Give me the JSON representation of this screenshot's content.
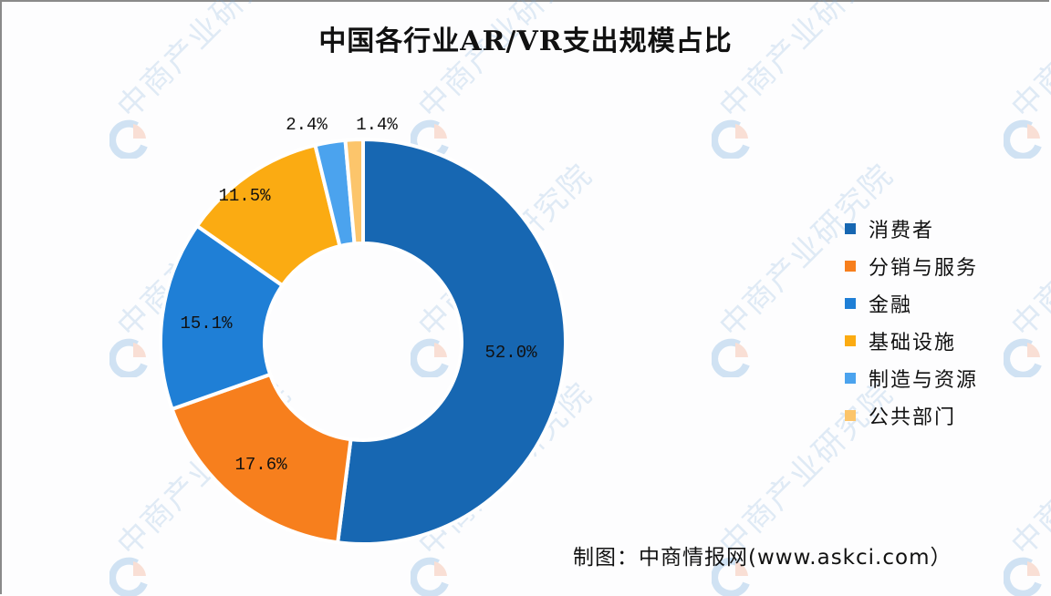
{
  "title": "中国各行业AR/VR支出规模占比",
  "source": "制图：中商情报网(www.askci.com）",
  "watermark_text": "中商产业研究院",
  "legend": [
    {
      "label": "消费者",
      "color": "#1767b2"
    },
    {
      "label": "分销与服务",
      "color": "#f77f1d"
    },
    {
      "label": "金融",
      "color": "#1f7fd6"
    },
    {
      "label": "基础设施",
      "color": "#fbab12"
    },
    {
      "label": "制造与资源",
      "color": "#4ba3ee"
    },
    {
      "label": "公共部门",
      "color": "#fcc56b"
    }
  ],
  "chart_data": {
    "type": "pie",
    "subtype": "donut",
    "title": "中国各行业AR/VR支出规模占比",
    "categories": [
      "消费者",
      "分销与服务",
      "金融",
      "基础设施",
      "制造与资源",
      "公共部门"
    ],
    "values": [
      52.0,
      17.6,
      15.1,
      11.5,
      2.4,
      1.4
    ],
    "unit": "%",
    "data_labels": [
      "52.0%",
      "17.6%",
      "15.1%",
      "11.5%",
      "2.4%",
      "1.4%"
    ],
    "colors": [
      "#1767b2",
      "#f77f1d",
      "#1f7fd6",
      "#fbab12",
      "#4ba3ee",
      "#fcc56b"
    ],
    "start_angle": "12 o'clock, clockwise",
    "legend_position": "right"
  }
}
